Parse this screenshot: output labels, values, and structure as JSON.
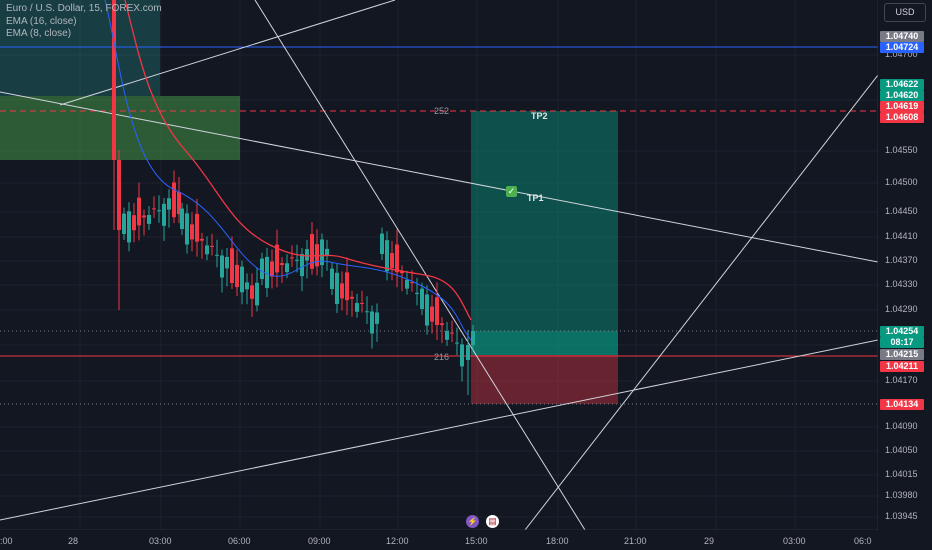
{
  "legend": {
    "title": "Euro / U.S. Dollar, 15, FOREX.com",
    "ema1": "EMA (16, close)",
    "ema2": "EMA (8, close)"
  },
  "currency_button": "USD",
  "price_axis_labels": [
    "1.04700",
    "1.04550",
    "1.04500",
    "1.04450",
    "1.04410",
    "1.04370",
    "1.04330",
    "1.04290",
    "1.04170",
    "1.04090",
    "1.04050",
    "1.04015",
    "1.03980",
    "1.03945"
  ],
  "price_tags": [
    {
      "text": "1.04740",
      "bg": "#787b86"
    },
    {
      "text": "1.04724",
      "bg": "#2962ff"
    },
    {
      "text": "1.04622",
      "bg": "#089981"
    },
    {
      "text": "1.04620",
      "bg": "#089981"
    },
    {
      "text": "1.04619",
      "bg": "#f23645"
    },
    {
      "text": "1.04608",
      "bg": "#f23645"
    },
    {
      "text": "1.04254",
      "bg": "#089981"
    },
    {
      "text": "08:17",
      "bg": "#089981"
    },
    {
      "text": "1.04215",
      "bg": "#787b86"
    },
    {
      "text": "1.04211",
      "bg": "#f23645"
    },
    {
      "text": "1.04134",
      "bg": "#f23645"
    }
  ],
  "time_labels": [
    ":00",
    "28",
    "03:00",
    "06:00",
    "09:00",
    "12:00",
    "15:00",
    "18:00",
    "21:00",
    "29",
    "03:00",
    "06:0"
  ],
  "position": {
    "target_label": "TP2",
    "tp1_label": "TP1",
    "target_ticks": "252",
    "stop_ticks": "216"
  },
  "icons": [
    "lightning-icon",
    "us-flag-icon",
    "check-icon"
  ],
  "colors": {
    "background": "#131722",
    "bull": "#26a69a",
    "bear": "#f23645",
    "ema_fast": "#2962ff",
    "ema_slow": "#f23645"
  }
}
